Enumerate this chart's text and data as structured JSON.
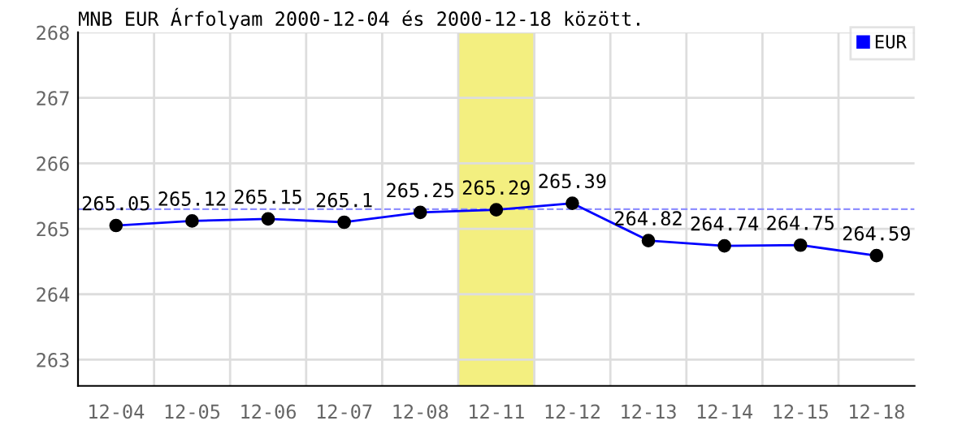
{
  "chart_data": {
    "type": "line",
    "title": "MNB EUR Árfolyam 2000-12-04 és 2000-12-18 között.",
    "categories": [
      "12-04",
      "12-05",
      "12-06",
      "12-07",
      "12-08",
      "12-11",
      "12-12",
      "12-13",
      "12-14",
      "12-15",
      "12-18"
    ],
    "series": [
      {
        "name": "EUR",
        "color": "#0000ff",
        "values": [
          265.05,
          265.12,
          265.15,
          265.1,
          265.25,
          265.29,
          265.39,
          264.82,
          264.74,
          264.75,
          264.59
        ]
      }
    ],
    "ylim": [
      262.6,
      268
    ],
    "yticks": [
      263,
      264,
      265,
      266,
      267,
      268
    ],
    "grid": true,
    "legend": "top right",
    "marker": "circle",
    "line_style": "solid",
    "data_labels": true,
    "ref_lines": [
      {
        "axis": "y",
        "value": 265.3,
        "color": "#8f8fff",
        "line_style": "dashed"
      }
    ],
    "bands": [
      {
        "axis": "x",
        "from": "12-11",
        "to": "12-11",
        "color": "#f3ef80"
      }
    ]
  }
}
